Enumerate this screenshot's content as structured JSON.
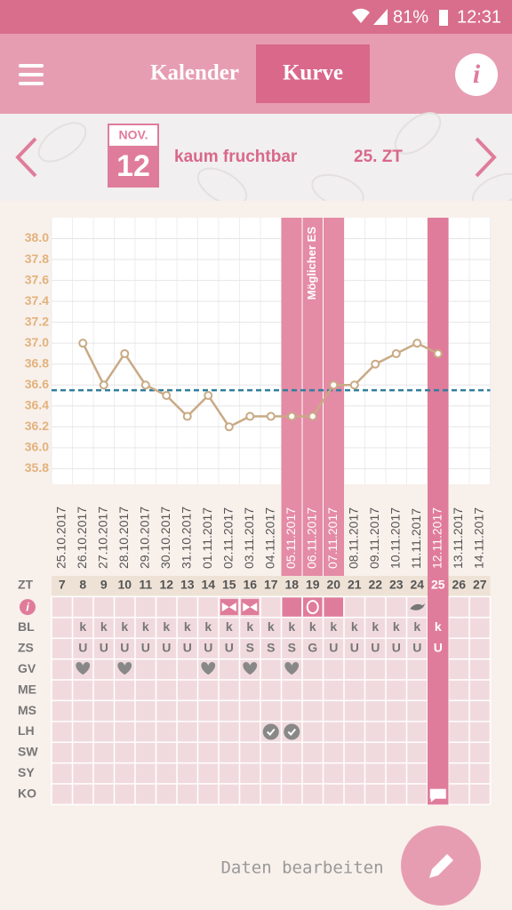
{
  "status_bar": {
    "battery": "81%",
    "time": "12:31"
  },
  "header": {
    "tabs": [
      "Kalender",
      "Kurve"
    ],
    "info": "i"
  },
  "date_bar": {
    "month": "NOV.",
    "day": "12",
    "fertility": "kaum fruchtbar",
    "cycle_day": "25. ZT"
  },
  "chart_data": {
    "type": "line",
    "categories": [
      "25.10.2017",
      "26.10.2017",
      "27.10.2017",
      "28.10.2017",
      "29.10.2017",
      "30.10.2017",
      "31.10.2017",
      "01.11.2017",
      "02.11.2017",
      "03.11.2017",
      "04.11.2017",
      "05.11.2017",
      "06.11.2017",
      "07.11.2017",
      "08.11.2017",
      "09.11.2017",
      "10.11.2017",
      "11.11.2017",
      "12.11.2017",
      "13.11.2017",
      "14.11.2017"
    ],
    "values": [
      null,
      37.0,
      36.6,
      36.9,
      36.6,
      36.5,
      36.3,
      36.5,
      36.2,
      36.3,
      36.3,
      36.3,
      36.3,
      36.6,
      36.6,
      36.8,
      36.9,
      37.0,
      36.9,
      null,
      null
    ],
    "color": "#c9aa85",
    "ylim": [
      35.65,
      38.2
    ],
    "yticks": [
      35.8,
      {
        "value": 36,
        "label": "36.0"
      },
      36.2,
      36.4,
      36.6,
      36.8,
      {
        "value": 37,
        "label": "37.0"
      },
      37.2,
      37.4,
      37.6,
      37.8,
      {
        "value": 38,
        "label": "38.0"
      }
    ],
    "grid": true,
    "coverline": 36.55,
    "coverline_color": "#2f7f9c",
    "annotation": "Möglicher ES"
  },
  "table": {
    "zt_label": "ZT",
    "zt": [
      7,
      8,
      9,
      10,
      11,
      12,
      13,
      14,
      15,
      16,
      17,
      18,
      19,
      20,
      21,
      22,
      23,
      24,
      25,
      26,
      27
    ],
    "info_label": "i",
    "rows": [
      {
        "label": "BL",
        "cells": [
          null,
          "k",
          "k",
          "k",
          "k",
          "k",
          "k",
          "k",
          "k",
          "k",
          "k",
          "k",
          "k",
          "k",
          "k",
          "k",
          "k",
          "k",
          "k",
          null,
          null
        ]
      },
      {
        "label": "ZS",
        "cells": [
          null,
          "U",
          "U",
          "U",
          "U",
          "U",
          "U",
          "U",
          "U",
          "S",
          "S",
          "S",
          "G",
          "U",
          "U",
          "U",
          "U",
          "U",
          "U",
          null,
          null
        ]
      },
      {
        "label": "GV"
      },
      {
        "label": "ME"
      },
      {
        "label": "MS"
      },
      {
        "label": "LH"
      },
      {
        "label": "SW"
      },
      {
        "label": "SY"
      },
      {
        "label": "KO"
      }
    ]
  },
  "footer": {
    "edit": "Daten bearbeiten"
  }
}
